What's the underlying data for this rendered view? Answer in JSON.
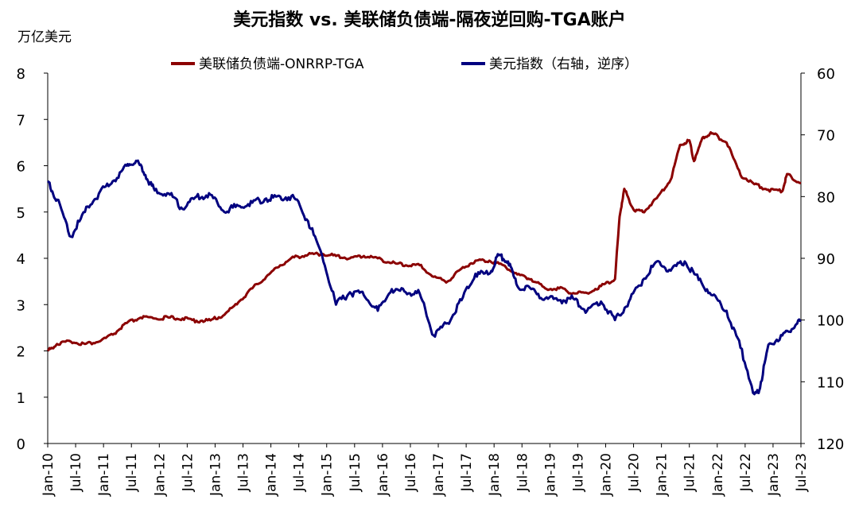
{
  "chart_data": {
    "type": "line",
    "title": "美元指数 vs. 美联储负债端-隔夜逆回购-TGA账户",
    "left_unit": "万亿美元",
    "left_axis": {
      "min": 0,
      "max": 8,
      "ticks": [
        "0",
        "1",
        "2",
        "3",
        "4",
        "5",
        "6",
        "7",
        "8"
      ]
    },
    "right_axis": {
      "min": 60,
      "max": 120,
      "inverted": true,
      "ticks": [
        "60",
        "70",
        "80",
        "90",
        "100",
        "110",
        "120"
      ]
    },
    "x_ticks": [
      "Jan-10",
      "Jul-10",
      "Jan-11",
      "Jul-11",
      "Jan-12",
      "Jul-12",
      "Jan-13",
      "Jul-13",
      "Jan-14",
      "Jul-14",
      "Jan-15",
      "Jul-15",
      "Jan-16",
      "Jul-16",
      "Jan-17",
      "Jul-17",
      "Jan-18",
      "Jul-18",
      "Jan-19",
      "Jul-19",
      "Jan-20",
      "Jul-20",
      "Jan-21",
      "Jul-21",
      "Jan-22",
      "Jul-22",
      "Jan-23",
      "Jul-23"
    ],
    "x_range": [
      "2010-01",
      "2023-07"
    ],
    "legend_placement": "top",
    "series": [
      {
        "name": "美联储负债端-ONRRP-TGA",
        "axis": "left",
        "color": "#8B0000",
        "points": [
          [
            "2010-01",
            2.0
          ],
          [
            "2010-03",
            2.15
          ],
          [
            "2010-06",
            2.2
          ],
          [
            "2010-09",
            2.15
          ],
          [
            "2010-12",
            2.2
          ],
          [
            "2011-03",
            2.35
          ],
          [
            "2011-06",
            2.6
          ],
          [
            "2011-09",
            2.72
          ],
          [
            "2011-12",
            2.7
          ],
          [
            "2012-03",
            2.72
          ],
          [
            "2012-06",
            2.7
          ],
          [
            "2012-09",
            2.65
          ],
          [
            "2012-12",
            2.66
          ],
          [
            "2013-03",
            2.78
          ],
          [
            "2013-06",
            3.05
          ],
          [
            "2013-09",
            3.35
          ],
          [
            "2013-12",
            3.6
          ],
          [
            "2014-03",
            3.85
          ],
          [
            "2014-06",
            4.02
          ],
          [
            "2014-09",
            4.08
          ],
          [
            "2014-12",
            4.1
          ],
          [
            "2015-03",
            4.05
          ],
          [
            "2015-06",
            4.0
          ],
          [
            "2015-09",
            4.05
          ],
          [
            "2015-12",
            4.0
          ],
          [
            "2016-03",
            3.9
          ],
          [
            "2016-06",
            3.85
          ],
          [
            "2016-09",
            3.85
          ],
          [
            "2016-12",
            3.6
          ],
          [
            "2017-03",
            3.5
          ],
          [
            "2017-06",
            3.78
          ],
          [
            "2017-09",
            3.95
          ],
          [
            "2017-12",
            3.95
          ],
          [
            "2018-03",
            3.85
          ],
          [
            "2018-06",
            3.65
          ],
          [
            "2018-09",
            3.55
          ],
          [
            "2018-12",
            3.35
          ],
          [
            "2019-03",
            3.35
          ],
          [
            "2019-06",
            3.25
          ],
          [
            "2019-09",
            3.25
          ],
          [
            "2019-12",
            3.4
          ],
          [
            "2020-03",
            3.55
          ],
          [
            "2020-04",
            4.9
          ],
          [
            "2020-05",
            5.5
          ],
          [
            "2020-07",
            5.05
          ],
          [
            "2020-09",
            5.0
          ],
          [
            "2020-12",
            5.3
          ],
          [
            "2021-03",
            5.7
          ],
          [
            "2021-05",
            6.45
          ],
          [
            "2021-07",
            6.55
          ],
          [
            "2021-08",
            6.1
          ],
          [
            "2021-10",
            6.62
          ],
          [
            "2021-12",
            6.7
          ],
          [
            "2022-03",
            6.5
          ],
          [
            "2022-06",
            5.8
          ],
          [
            "2022-09",
            5.6
          ],
          [
            "2022-12",
            5.48
          ],
          [
            "2023-03",
            5.45
          ],
          [
            "2023-04",
            5.82
          ],
          [
            "2023-07",
            5.62
          ]
        ]
      },
      {
        "name": "美元指数（右轴，逆序）",
        "axis": "right",
        "color": "#00007F",
        "points": [
          [
            "2010-01",
            77.5
          ],
          [
            "2010-03",
            80.5
          ],
          [
            "2010-06",
            86.5
          ],
          [
            "2010-09",
            82.5
          ],
          [
            "2010-12",
            79.5
          ],
          [
            "2011-03",
            77.5
          ],
          [
            "2011-06",
            75.0
          ],
          [
            "2011-08",
            74.2
          ],
          [
            "2011-10",
            76.5
          ],
          [
            "2011-12",
            79.0
          ],
          [
            "2012-03",
            79.5
          ],
          [
            "2012-06",
            82.0
          ],
          [
            "2012-09",
            80.0
          ],
          [
            "2012-12",
            79.7
          ],
          [
            "2013-03",
            82.5
          ],
          [
            "2013-06",
            81.5
          ],
          [
            "2013-09",
            81.0
          ],
          [
            "2013-12",
            80.3
          ],
          [
            "2014-03",
            80.0
          ],
          [
            "2014-06",
            80.2
          ],
          [
            "2014-09",
            84.0
          ],
          [
            "2014-12",
            89.5
          ],
          [
            "2015-03",
            97.5
          ],
          [
            "2015-06",
            95.5
          ],
          [
            "2015-09",
            96.0
          ],
          [
            "2015-12",
            98.5
          ],
          [
            "2016-03",
            95.0
          ],
          [
            "2016-06",
            95.5
          ],
          [
            "2016-09",
            95.7
          ],
          [
            "2016-12",
            102.5
          ],
          [
            "2017-03",
            100.5
          ],
          [
            "2017-06",
            96.8
          ],
          [
            "2017-09",
            92.5
          ],
          [
            "2017-12",
            92.5
          ],
          [
            "2018-02",
            89.5
          ],
          [
            "2018-04",
            90.5
          ],
          [
            "2018-06",
            94.5
          ],
          [
            "2018-09",
            95.0
          ],
          [
            "2018-12",
            96.5
          ],
          [
            "2019-03",
            96.8
          ],
          [
            "2019-06",
            96.5
          ],
          [
            "2019-09",
            98.5
          ],
          [
            "2019-12",
            97.0
          ],
          [
            "2020-03",
            100.0
          ],
          [
            "2020-06",
            97.0
          ],
          [
            "2020-09",
            93.5
          ],
          [
            "2020-12",
            90.5
          ],
          [
            "2021-03",
            92.0
          ],
          [
            "2021-06",
            90.5
          ],
          [
            "2021-09",
            93.5
          ],
          [
            "2021-12",
            96.0
          ],
          [
            "2022-03",
            98.5
          ],
          [
            "2022-06",
            104.5
          ],
          [
            "2022-09",
            112.0
          ],
          [
            "2022-10",
            111.5
          ],
          [
            "2022-12",
            104.0
          ],
          [
            "2023-03",
            102.5
          ],
          [
            "2023-05",
            101.5
          ],
          [
            "2023-07",
            100.0
          ]
        ]
      }
    ]
  }
}
